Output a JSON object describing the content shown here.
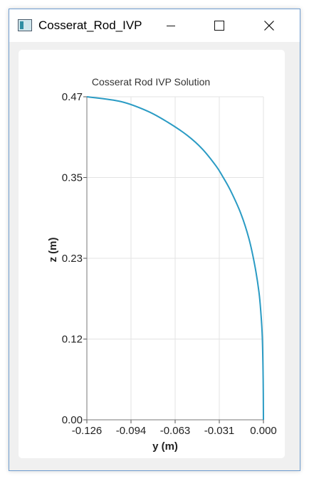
{
  "window": {
    "title": "Cosserat_Rod_IVP"
  },
  "chart_data": {
    "type": "line",
    "title": "Cosserat Rod IVP Solution",
    "xlabel": "y (m)",
    "ylabel": "z (m)",
    "xlim": [
      -0.126,
      0.0
    ],
    "ylim": [
      0.0,
      0.47
    ],
    "x_ticks": [
      "-0.126",
      "-0.094",
      "-0.063",
      "-0.031",
      "0.000"
    ],
    "y_ticks": [
      "0.00",
      "0.12",
      "0.23",
      "0.35",
      "0.47"
    ],
    "grid": true,
    "series": [
      {
        "color": "#2a9bc4",
        "x": [
          0.0,
          -0.0002,
          -0.0008,
          -0.0018,
          -0.0032,
          -0.0062,
          -0.0104,
          -0.0161,
          -0.0236,
          -0.0291,
          -0.0337,
          -0.0436,
          -0.0545,
          -0.0683,
          -0.0826,
          -0.1017,
          -0.126
        ],
        "y": [
          0.0,
          0.06,
          0.12,
          0.155,
          0.186,
          0.225,
          0.264,
          0.3,
          0.334,
          0.354,
          0.369,
          0.394,
          0.414,
          0.433,
          0.449,
          0.463,
          0.47
        ]
      }
    ]
  }
}
